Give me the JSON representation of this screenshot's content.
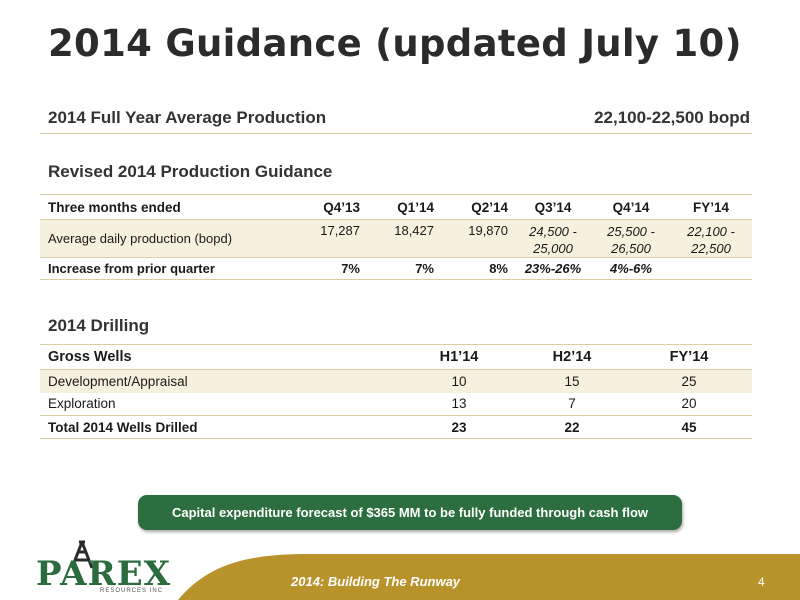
{
  "title": "2014 Guidance (updated July 10)",
  "full_year": {
    "label": "2014 Full Year Average Production",
    "value": "22,100-22,500 bopd"
  },
  "production": {
    "section_title": "Revised 2014 Production Guidance",
    "headers": [
      "Three months ended",
      "Q4’13",
      "Q1’14",
      "Q2’14",
      "Q3’14",
      "Q4’14",
      "FY’14"
    ],
    "avg_row": {
      "label": "Average daily production (bopd)",
      "q4_13": "17,287",
      "q1_14": "18,427",
      "q2_14": "19,870",
      "q3_14": [
        "24,500 -",
        "25,000"
      ],
      "q4_14": [
        "25,500 -",
        "26,500"
      ],
      "fy_14": [
        "22,100 -",
        "22,500"
      ]
    },
    "increase_row": {
      "label": "Increase from prior quarter",
      "q4_13": "7%",
      "q1_14": "7%",
      "q2_14": "8%",
      "q3_14": "23%-26%",
      "q4_14": "4%-6%",
      "fy_14": ""
    }
  },
  "drilling": {
    "section_title": "2014 Drilling",
    "headers": [
      "Gross Wells",
      "H1’14",
      "H2’14",
      "FY’14"
    ],
    "rows": [
      {
        "label": "Development/Appraisal",
        "h1": "10",
        "h2": "15",
        "fy": "25"
      },
      {
        "label": "Exploration",
        "h1": "13",
        "h2": "7",
        "fy": "20"
      }
    ],
    "total": {
      "label": "Total 2014 Wells Drilled",
      "h1": "23",
      "h2": "22",
      "fy": "45"
    }
  },
  "capex_banner": "Capital expenditure forecast of $365 MM to be fully funded through cash flow",
  "logo": {
    "text": "PAREX",
    "subtext": "RESOURCES INC"
  },
  "footer": {
    "text": "2014: Building The Runway",
    "page": "4"
  },
  "colors": {
    "brand_green": "#2c6e3f",
    "footer_gold": "#b8922a",
    "row_shade": "#f6f1de",
    "rule": "#d9cfa6"
  }
}
